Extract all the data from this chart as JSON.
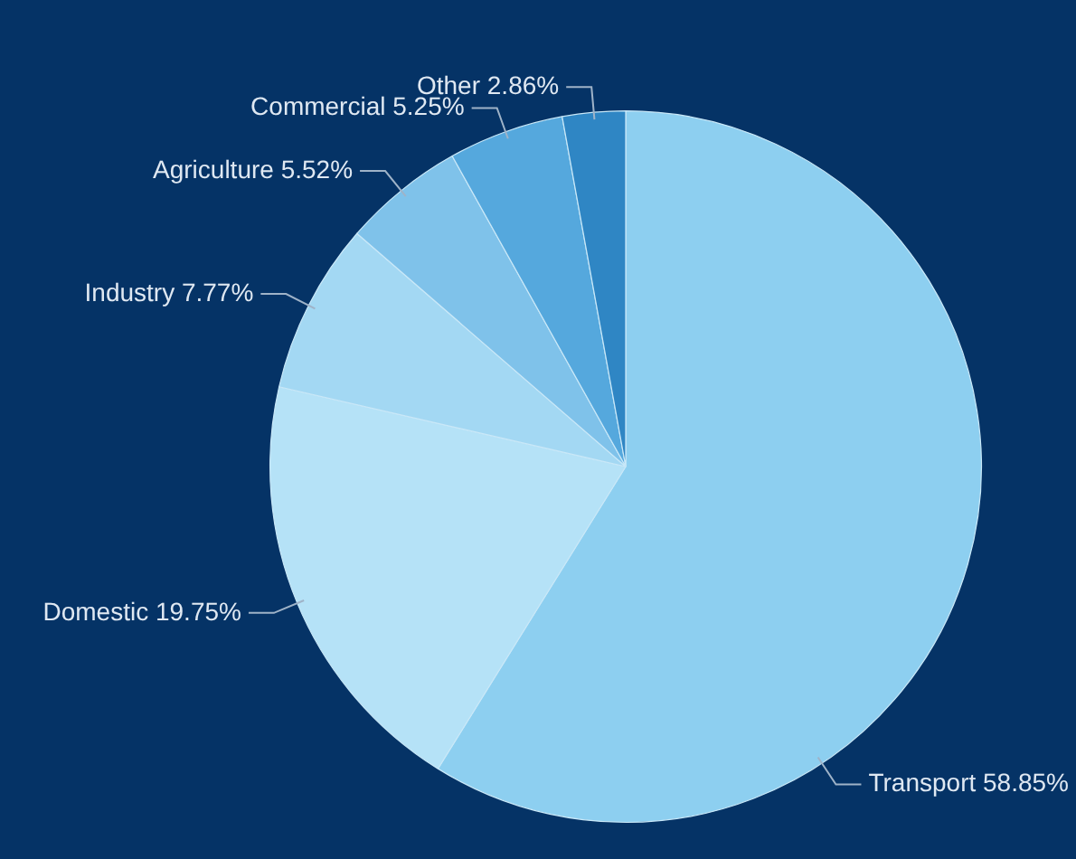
{
  "chart_data": {
    "type": "pie",
    "categories": [
      "Transport",
      "Domestic",
      "Industry",
      "Agriculture",
      "Commercial",
      "Other"
    ],
    "values": [
      58.85,
      19.75,
      7.77,
      5.52,
      5.25,
      2.86
    ],
    "value_labels": [
      "58.85%",
      "19.75%",
      "7.77%",
      "5.52%",
      "5.25%",
      "2.86%"
    ],
    "colors": [
      "#8dcff0",
      "#b5e2f7",
      "#a3d8f3",
      "#7fc2ea",
      "#55a8dd",
      "#2f86c4"
    ]
  }
}
